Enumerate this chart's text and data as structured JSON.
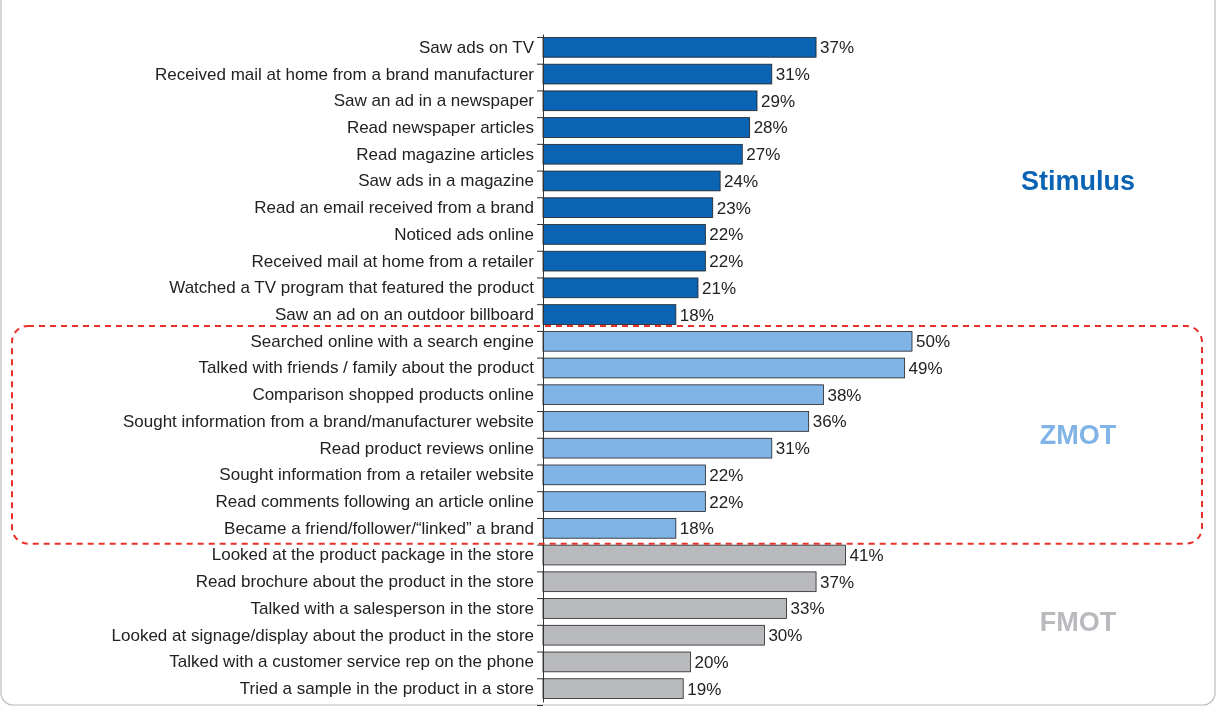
{
  "chart_data": {
    "type": "bar",
    "orientation": "horizontal",
    "categories": [
      "Saw ads on TV",
      "Received mail at home from a brand manufacturer",
      "Saw an ad in a newspaper",
      "Read newspaper articles",
      "Read magazine articles",
      "Saw ads in a magazine",
      "Read an email received from a brand",
      "Noticed ads online",
      "Received mail at home from a retailer",
      "Watched a TV program that featured the product",
      "Saw an ad on an outdoor billboard",
      "Searched online with a search engine",
      "Talked with friends / family about the product",
      "Comparison shopped products online",
      "Sought information from a brand/manufacturer website",
      "Read product reviews online",
      "Sought information from a retailer website",
      "Read comments following an article online",
      "Became a friend/follower/“linked” a brand",
      "Looked at the product package in the store",
      "Read brochure about the product in the store",
      "Talked with a salesperson in the store",
      "Looked at signage/display about the product in the store",
      "Talked with a customer service rep on the phone",
      "Tried a sample in the product in a store"
    ],
    "series": [
      {
        "name": "Stimulus",
        "color": "#0a63b3",
        "values": [
          37,
          31,
          29,
          28,
          27,
          24,
          23,
          22,
          22,
          21,
          18,
          null,
          null,
          null,
          null,
          null,
          null,
          null,
          null,
          null,
          null,
          null,
          null,
          null,
          null
        ],
        "value_labels": [
          "37%",
          "31%",
          "29%",
          "28%",
          "27%",
          "24%",
          "23%",
          "22%",
          "22%",
          "21%",
          "18%",
          null,
          null,
          null,
          null,
          null,
          null,
          null,
          null,
          null,
          null,
          null,
          null,
          null,
          null
        ]
      },
      {
        "name": "ZMOT",
        "color": "#80b4e6",
        "values": [
          null,
          null,
          null,
          null,
          null,
          null,
          null,
          null,
          null,
          null,
          null,
          50,
          49,
          38,
          36,
          31,
          22,
          22,
          18,
          null,
          null,
          null,
          null,
          null,
          null
        ],
        "value_labels": [
          null,
          null,
          null,
          null,
          null,
          null,
          null,
          null,
          null,
          null,
          null,
          "50%",
          "49%",
          "38%",
          "36%",
          "31%",
          "22%",
          "22%",
          "18%",
          null,
          null,
          null,
          null,
          null,
          null
        ]
      },
      {
        "name": "FMOT",
        "color": "#b9babe",
        "values": [
          null,
          null,
          null,
          null,
          null,
          null,
          null,
          null,
          null,
          null,
          null,
          null,
          null,
          null,
          null,
          null,
          null,
          null,
          null,
          41,
          37,
          33,
          30,
          20,
          19
        ],
        "value_labels": [
          null,
          null,
          null,
          null,
          null,
          null,
          null,
          null,
          null,
          null,
          null,
          null,
          null,
          null,
          null,
          null,
          null,
          null,
          null,
          "41%",
          "37%",
          "33%",
          "30%",
          "20%",
          "19%"
        ]
      }
    ],
    "legend": false,
    "grid": false
  }
}
